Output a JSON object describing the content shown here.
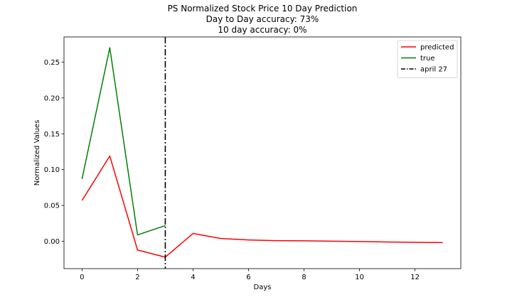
{
  "chart_data": {
    "type": "line",
    "title_lines": [
      "PS Normalized Stock Price 10 Day Prediction",
      "Day to Day accuracy: 73%",
      "10 day accuracy: 0%"
    ],
    "xlabel": "Days",
    "ylabel": "Normalized Values",
    "xlim": [
      -0.65,
      13.65
    ],
    "ylim": [
      -0.038,
      0.285
    ],
    "xticks": [
      0,
      2,
      4,
      6,
      8,
      10,
      12
    ],
    "xtick_labels": [
      "0",
      "2",
      "4",
      "6",
      "8",
      "10",
      "12"
    ],
    "yticks": [
      0.0,
      0.05,
      0.1,
      0.15,
      0.2,
      0.25
    ],
    "ytick_labels": [
      "0.00",
      "0.05",
      "0.10",
      "0.15",
      "0.20",
      "0.25"
    ],
    "grid": false,
    "legend_position": "top-right",
    "series": [
      {
        "name": "predicted",
        "color": "#ff0000",
        "x": [
          0,
          1,
          2,
          3,
          4,
          5,
          6,
          7,
          8,
          9,
          10,
          11,
          12,
          13
        ],
        "y": [
          0.057,
          0.119,
          -0.012,
          -0.022,
          0.011,
          0.004,
          0.002,
          0.001,
          0.0008,
          0.0003,
          -0.0002,
          -0.0008,
          -0.0013,
          -0.0017
        ]
      },
      {
        "name": "true",
        "color": "#008000",
        "x": [
          0,
          1,
          2,
          3
        ],
        "y": [
          0.087,
          0.27,
          0.009,
          0.022
        ]
      }
    ],
    "vline": {
      "name": "april 27",
      "x": 3,
      "color": "#000000",
      "style": "dash-dot"
    }
  }
}
